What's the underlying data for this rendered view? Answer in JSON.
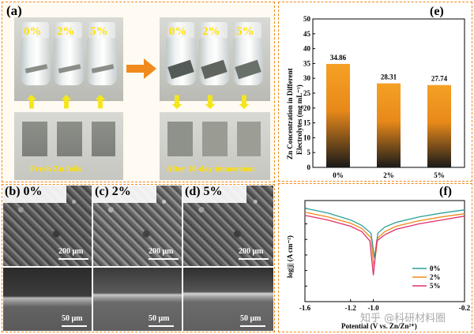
{
  "panel_a": {
    "label": "(a)",
    "before_percents": [
      "0%",
      "2%",
      "5%"
    ],
    "after_percents": [
      "0%",
      "2%",
      "5%"
    ],
    "left_caption": "Fresh Zn foils",
    "right_caption": "After 10-day immersion"
  },
  "sem_panels": [
    {
      "label": "(b) 0%",
      "top_scale": "200 μm",
      "bottom_scale": "50 μm"
    },
    {
      "label": "(c) 2%",
      "top_scale": "200 μm",
      "bottom_scale": "50 μm"
    },
    {
      "label": "(d) 5%",
      "top_scale": "200 μm",
      "bottom_scale": "50 μm"
    }
  ],
  "panel_e": {
    "label": "(e)",
    "ylabel_line1": "Zn Concentration in Different",
    "ylabel_line2": "Electrolytes (mg mL⁻¹)",
    "yticks": [
      "0",
      "5",
      "10",
      "15",
      "20",
      "25",
      "30",
      "35",
      "40",
      "45",
      "50"
    ],
    "colors": {
      "bar_top": "#f5a124",
      "bar_bottom": "#1a1a1a"
    }
  },
  "chart_data": [
    {
      "type": "bar",
      "categories": [
        "0%",
        "2%",
        "5%"
      ],
      "values": [
        34.86,
        28.31,
        27.74
      ],
      "data_labels": [
        "34.86",
        "28.31",
        "27.74"
      ],
      "xlabel": "",
      "ylabel": "Zn Concentration in Different Electrolytes (mg mL⁻¹)",
      "ylim": [
        0,
        50
      ]
    },
    {
      "type": "line",
      "xlabel": "Potential (V vs. Zn/Zn²⁺)",
      "ylabel": "log|j| (A cm⁻²)",
      "xlim": [
        -1.6,
        -0.2
      ],
      "xticks": [
        "-1.6",
        "-1.4",
        "-1.2",
        "-1.0",
        "-0.8",
        "-0.6",
        "-0.4",
        "-0.2"
      ],
      "yticks": [
        "-1",
        "-2",
        "-3",
        "-4",
        "-5",
        "-6",
        "-7"
      ],
      "legend_position": "bottom-right",
      "series": [
        {
          "name": "0%",
          "color": "#2aa198",
          "corrosion_potential": -0.99,
          "x": [
            -1.6,
            -1.4,
            -1.2,
            -1.1,
            -1.02,
            -0.99,
            -0.96,
            -0.9,
            -0.8,
            -0.6,
            -0.4,
            -0.2
          ],
          "y": [
            -1.0,
            -1.3,
            -1.75,
            -2.1,
            -2.6,
            -4.2,
            -2.6,
            -2.2,
            -1.9,
            -1.55,
            -1.3,
            -1.1
          ]
        },
        {
          "name": "2%",
          "color": "#f08a1c",
          "corrosion_potential": -0.995,
          "x": [
            -1.6,
            -1.4,
            -1.2,
            -1.1,
            -1.02,
            -0.995,
            -0.96,
            -0.9,
            -0.8,
            -0.6,
            -0.4,
            -0.2
          ],
          "y": [
            -1.25,
            -1.55,
            -1.95,
            -2.3,
            -2.9,
            -4.8,
            -2.9,
            -2.5,
            -2.15,
            -1.8,
            -1.55,
            -1.35
          ]
        },
        {
          "name": "5%",
          "color": "#e0306a",
          "corrosion_potential": -1.0,
          "x": [
            -1.6,
            -1.4,
            -1.2,
            -1.1,
            -1.03,
            -1.0,
            -0.97,
            -0.9,
            -0.8,
            -0.6,
            -0.4,
            -0.2
          ],
          "y": [
            -1.45,
            -1.75,
            -2.15,
            -2.5,
            -3.1,
            -5.3,
            -3.1,
            -2.7,
            -2.35,
            -2.0,
            -1.75,
            -1.5
          ]
        }
      ]
    }
  ],
  "panel_f": {
    "label": "(f)",
    "xtick_labels_visible": [
      "-1.6",
      "-1.2",
      "-1.0",
      "-0.2"
    ],
    "xlabel": "Potential (V vs. Zn/Zn²⁺)",
    "ylabel": "log|j| (A cm⁻²)"
  },
  "watermark": "知乎 @科研材料圈"
}
